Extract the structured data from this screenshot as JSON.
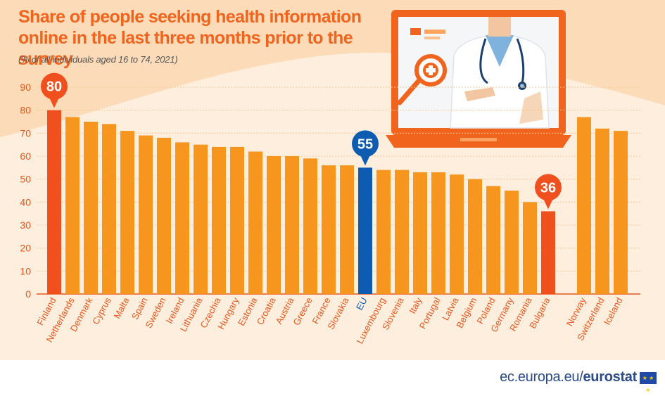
{
  "title": "Share of people seeking health information online in the last three months prior to the survey",
  "subtitle": "(% of all individuals aged 16 to 74, 2021)",
  "footer": {
    "site": "ec.europa.eu/",
    "brand": "eurostat"
  },
  "colors": {
    "bar": "#f6961e",
    "highlight_high_low": "#f0501e",
    "highlight_eu": "#0d5cb0",
    "axis_text": "#e8561c",
    "grid": "#f5c796"
  },
  "chart_data": {
    "type": "bar",
    "ylim": [
      0,
      90
    ],
    "yticks": [
      0,
      10,
      20,
      30,
      40,
      50,
      60,
      70,
      80,
      90
    ],
    "categories": [
      "Finland",
      "Netherlands",
      "Denmark",
      "Cyprus",
      "Malta",
      "Spain",
      "Sweden",
      "Ireland",
      "Lithuania",
      "Czechia",
      "Hungary",
      "Estonia",
      "Croatia",
      "Austria",
      "Greece",
      "France",
      "Slovakia",
      "EU",
      "Luxembourg",
      "Slovenia",
      "Italy",
      "Portugal",
      "Latvia",
      "Belgium",
      "Poland",
      "Germany",
      "Romania",
      "Bulgaria",
      "Norway",
      "Switzerland",
      "Iceland"
    ],
    "values": [
      80,
      77,
      75,
      74,
      71,
      69,
      68,
      66,
      65,
      64,
      64,
      62,
      60,
      60,
      59,
      56,
      56,
      55,
      54,
      54,
      53,
      53,
      52,
      50,
      47,
      45,
      40,
      36,
      77,
      72,
      71
    ],
    "highlights": {
      "Finland": "max",
      "EU": "eu",
      "Bulgaria": "min"
    },
    "callout_labels": {
      "Finland": "80",
      "EU": "55",
      "Bulgaria": "36"
    },
    "gap_before": "Norway"
  }
}
